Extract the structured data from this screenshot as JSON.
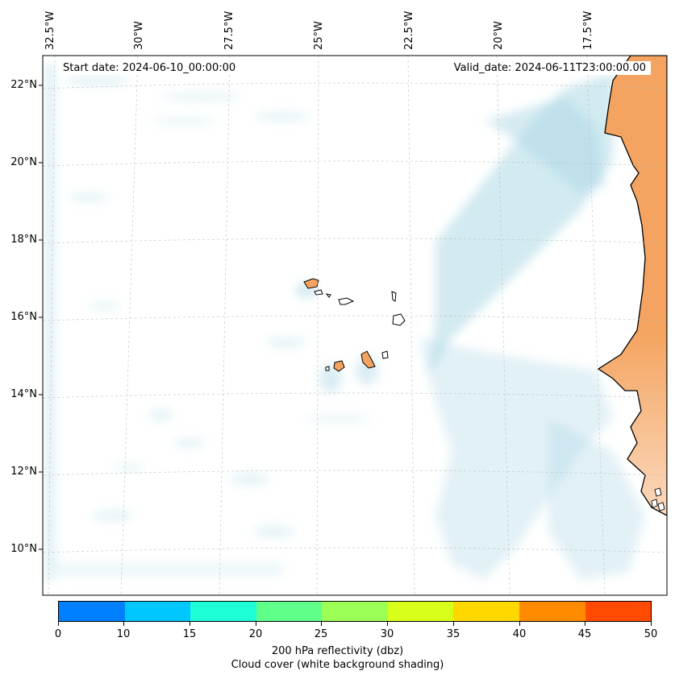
{
  "header": {
    "start_date": "Start date: 2024-06-10_00:00:00",
    "valid_date": "Valid_date: 2024-06-11T23:00:00.00"
  },
  "map": {
    "lon_ticks": [
      "32.5°W",
      "30°W",
      "27.5°W",
      "25°W",
      "22.5°W",
      "20°W",
      "17.5°W"
    ],
    "lat_ticks": [
      "22°N",
      "20°N",
      "18°N",
      "16°N",
      "14°N",
      "12°N",
      "10°N"
    ],
    "land_color": "#f4a460",
    "cloud_color": "#add8e6",
    "coastline_color": "#000000",
    "gridlines": true
  },
  "colorbar": {
    "colors": [
      "#007fff",
      "#00c8ff",
      "#1effd8",
      "#5fff8a",
      "#9cff55",
      "#d8ff1a",
      "#ffd800",
      "#ff8c00",
      "#ff4a00"
    ],
    "tick_labels": [
      "0",
      "10",
      "15",
      "20",
      "25",
      "30",
      "35",
      "40",
      "45",
      "50"
    ],
    "title": "200 hPa reflectivity (dbz)",
    "subtitle": "Cloud cover (white background shading)"
  }
}
